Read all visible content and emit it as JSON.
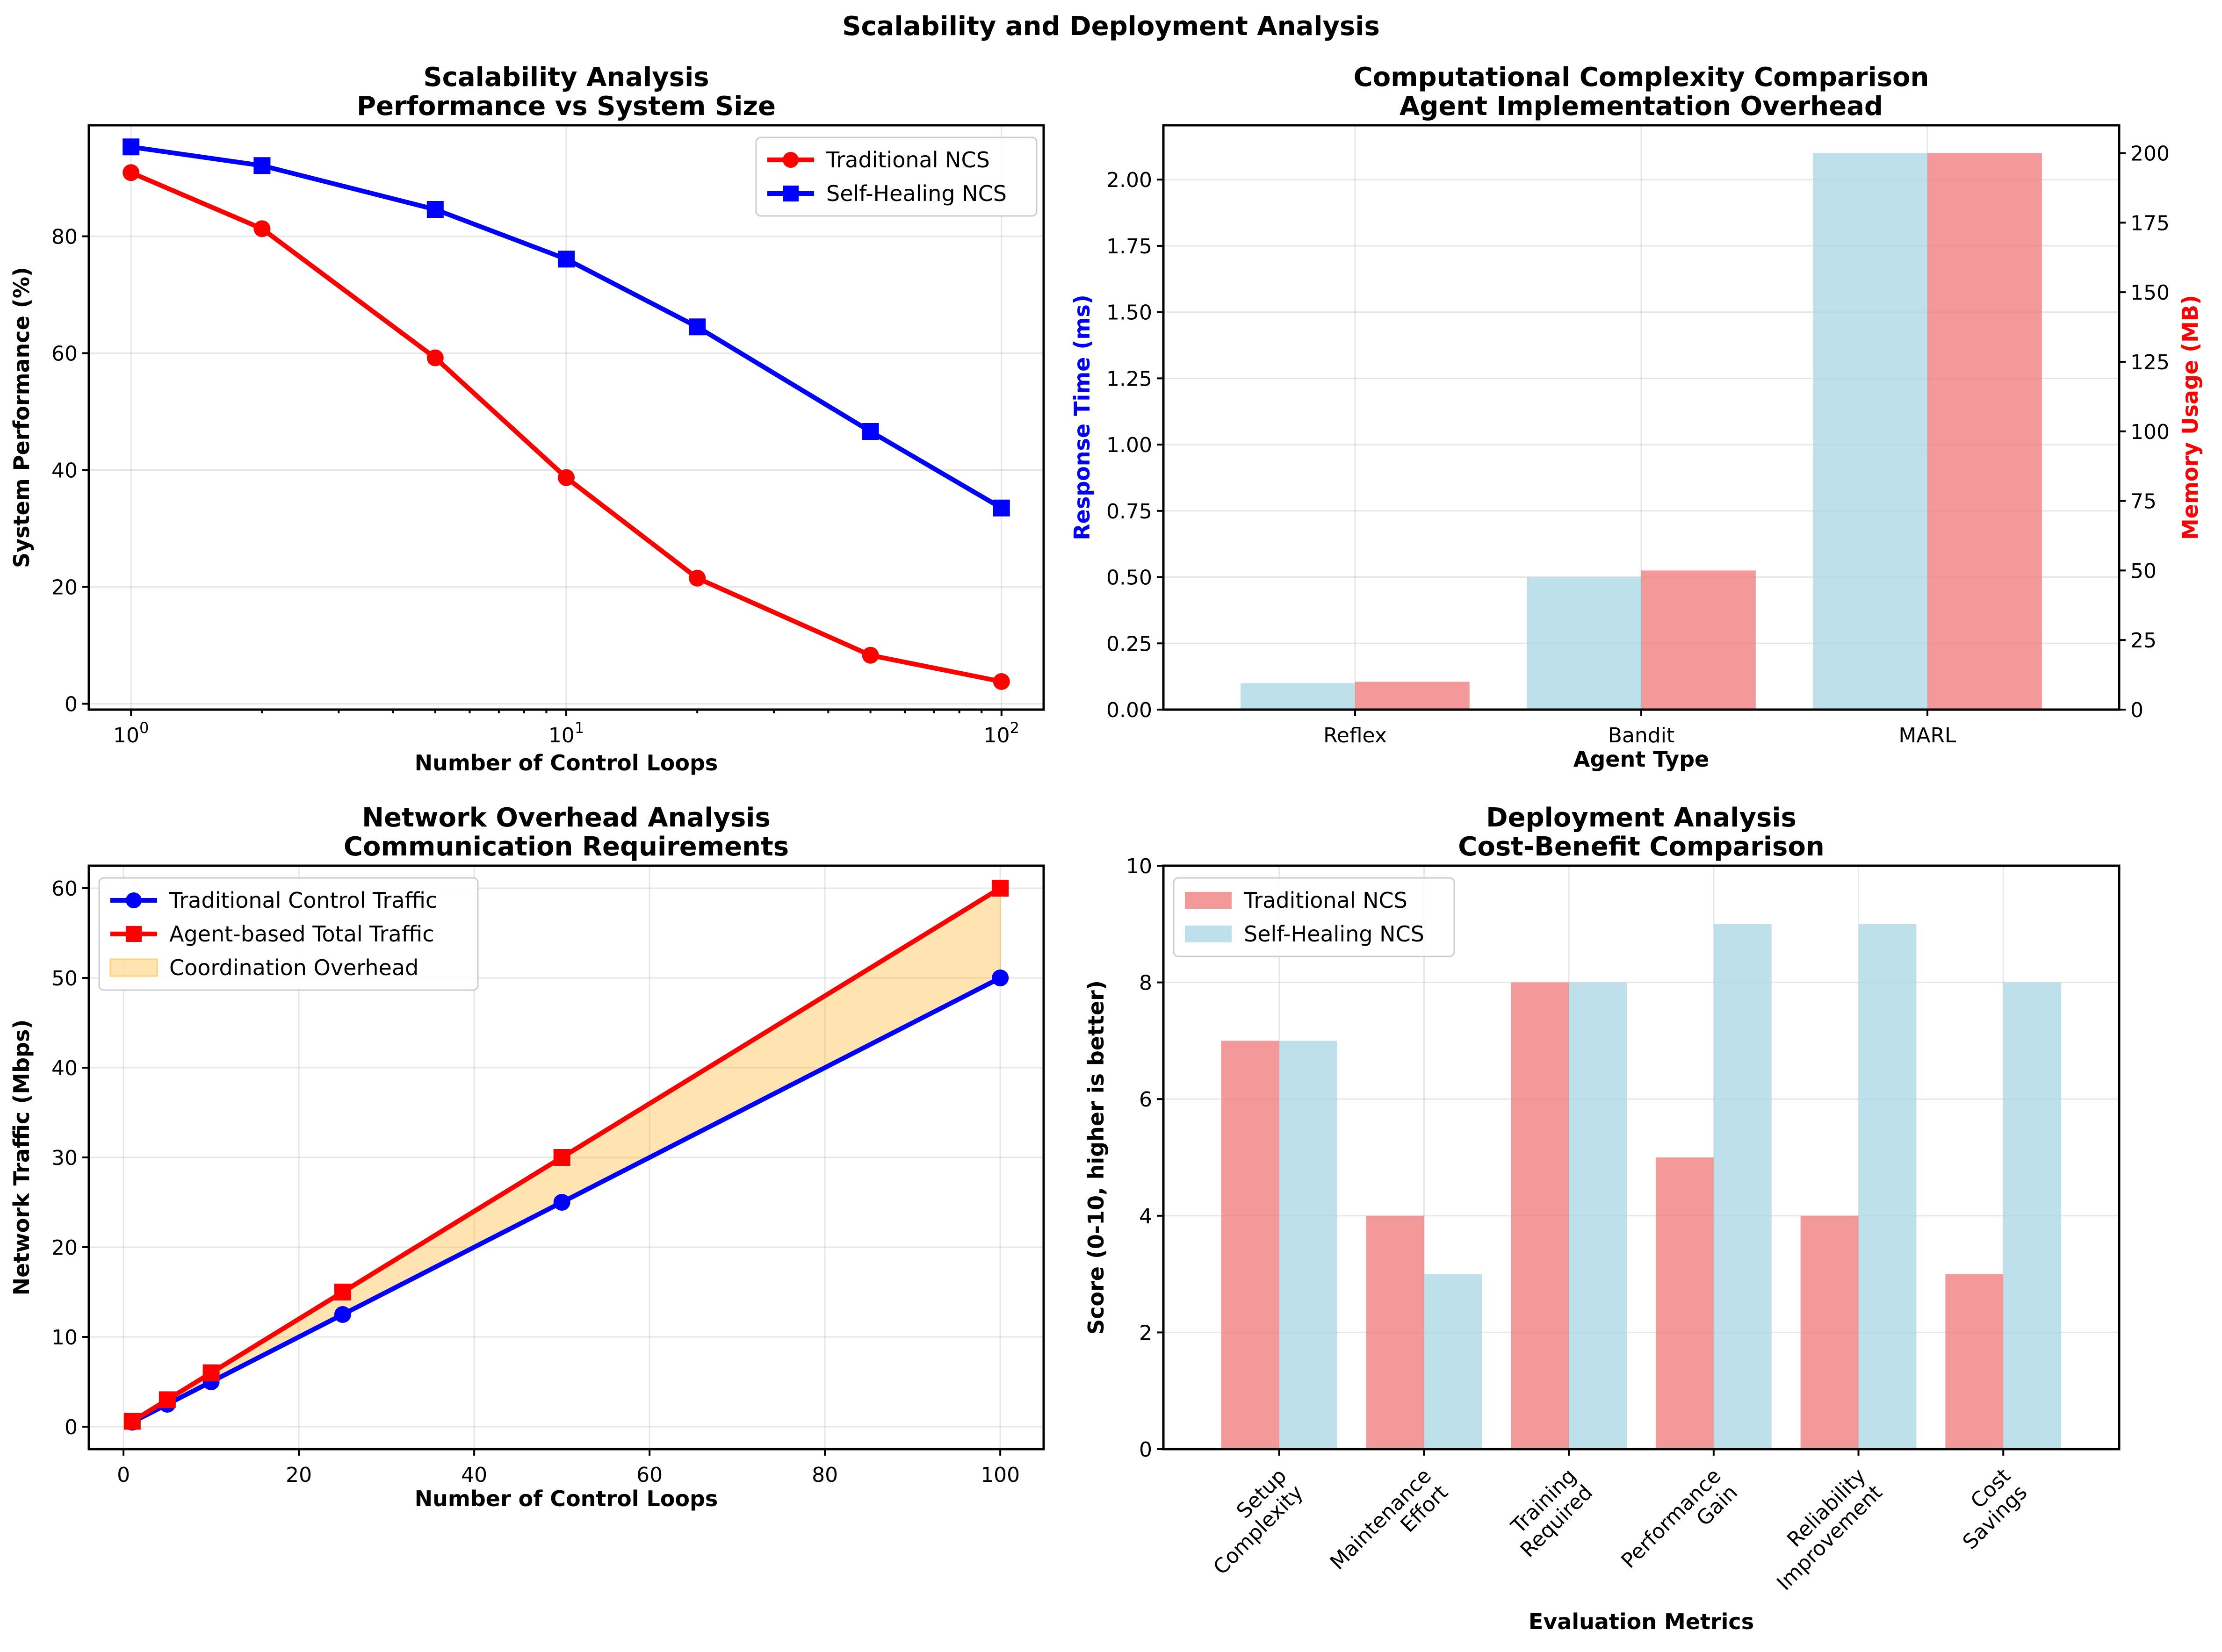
{
  "figure": {
    "title": "Scalability and Deployment Analysis"
  },
  "chart_data": [
    {
      "id": "scalability",
      "type": "line",
      "title": [
        "Scalability Analysis",
        "Performance vs System Size"
      ],
      "xlabel": "Number of Control Loops",
      "ylabel": "System Performance (%)",
      "xscale": "log",
      "xlim": [
        0.8,
        125
      ],
      "ylim": [
        -1,
        99
      ],
      "xticks": [
        1,
        10,
        100
      ],
      "xtick_labels": [
        "10",
        "10",
        "10"
      ],
      "xtick_exps": [
        "0",
        "1",
        "2"
      ],
      "yticks": [
        0,
        20,
        40,
        60,
        80
      ],
      "grid": true,
      "legend": "top-right",
      "x": [
        1,
        2,
        5,
        10,
        20,
        50,
        100
      ],
      "series": [
        {
          "name": "Traditional NCS",
          "color": "#ff0000",
          "marker": "circle",
          "values": [
            90.9,
            81.3,
            59.2,
            38.7,
            21.5,
            8.3,
            3.8
          ]
        },
        {
          "name": "Self-Healing NCS",
          "color": "#0000ff",
          "marker": "square",
          "values": [
            95.3,
            92.1,
            84.6,
            76.1,
            64.5,
            46.6,
            33.5
          ]
        }
      ]
    },
    {
      "id": "complexity",
      "type": "bar",
      "title": [
        "Computational Complexity Comparison",
        "Agent Implementation Overhead"
      ],
      "xlabel": "Agent Type",
      "ylabel": "Response Time (ms)",
      "ylabel_color": "#0000ff",
      "y2label": "Memory Usage (MB)",
      "y2label_color": "#ff0000",
      "categories": [
        "Reflex",
        "Bandit",
        "MARL"
      ],
      "ylim": [
        0,
        2.205
      ],
      "y2lim": [
        0,
        210
      ],
      "yticks": [
        0.0,
        0.25,
        0.5,
        0.75,
        1.0,
        1.25,
        1.5,
        1.75,
        2.0
      ],
      "ytick_labels": [
        "0.00",
        "0.25",
        "0.50",
        "0.75",
        "1.00",
        "1.25",
        "1.50",
        "1.75",
        "2.00"
      ],
      "y2ticks": [
        0,
        25,
        50,
        75,
        100,
        125,
        150,
        175,
        200
      ],
      "grid": true,
      "series": [
        {
          "name": "Response Time",
          "axis": "left",
          "color": "#add8e6",
          "values": [
            0.1,
            0.5,
            2.1
          ]
        },
        {
          "name": "Memory Usage",
          "axis": "right",
          "color": "#f08080",
          "values": [
            10,
            50,
            200
          ]
        }
      ]
    },
    {
      "id": "network",
      "type": "line",
      "title": [
        "Network Overhead Analysis",
        "Communication Requirements"
      ],
      "xlabel": "Number of Control Loops",
      "ylabel": "Network Traffic (Mbps)",
      "xlim": [
        -3.95,
        104.95
      ],
      "ylim": [
        -2.5,
        62.5
      ],
      "xticks": [
        0,
        20,
        40,
        60,
        80,
        100
      ],
      "yticks": [
        0,
        10,
        20,
        30,
        40,
        50,
        60
      ],
      "grid": true,
      "legend": "top-left",
      "x": [
        1,
        5,
        10,
        25,
        50,
        100
      ],
      "series": [
        {
          "name": "Traditional Control Traffic",
          "color": "#0000ff",
          "marker": "circle",
          "values": [
            0.5,
            2.5,
            5,
            12.5,
            25,
            50
          ]
        },
        {
          "name": "Agent-based Total Traffic",
          "color": "#ff0000",
          "marker": "square",
          "values": [
            0.6,
            3,
            6,
            15,
            30,
            60
          ]
        }
      ],
      "fill": {
        "name": "Coordination Overhead",
        "color": "#ffa500"
      }
    },
    {
      "id": "deployment",
      "type": "bar",
      "title": [
        "Deployment Analysis",
        "Cost-Benefit Comparison"
      ],
      "xlabel": "Evaluation Metrics",
      "ylabel": "Score (0-10, higher is better)",
      "categories": [
        [
          "Setup",
          "Complexity"
        ],
        [
          "Maintenance",
          "Effort"
        ],
        [
          "Training",
          "Required"
        ],
        [
          "Performance",
          "Gain"
        ],
        [
          "Reliability",
          "Improvement"
        ],
        [
          "Cost",
          "Savings"
        ]
      ],
      "ylim": [
        0,
        10
      ],
      "yticks": [
        0,
        2,
        4,
        6,
        8,
        10
      ],
      "grid": true,
      "legend": "top-left",
      "series": [
        {
          "name": "Traditional NCS",
          "color": "#f08080",
          "values": [
            7,
            4,
            8,
            5,
            4,
            3
          ]
        },
        {
          "name": "Self-Healing NCS",
          "color": "#add8e6",
          "values": [
            7,
            3,
            8,
            9,
            9,
            8
          ]
        }
      ]
    }
  ]
}
